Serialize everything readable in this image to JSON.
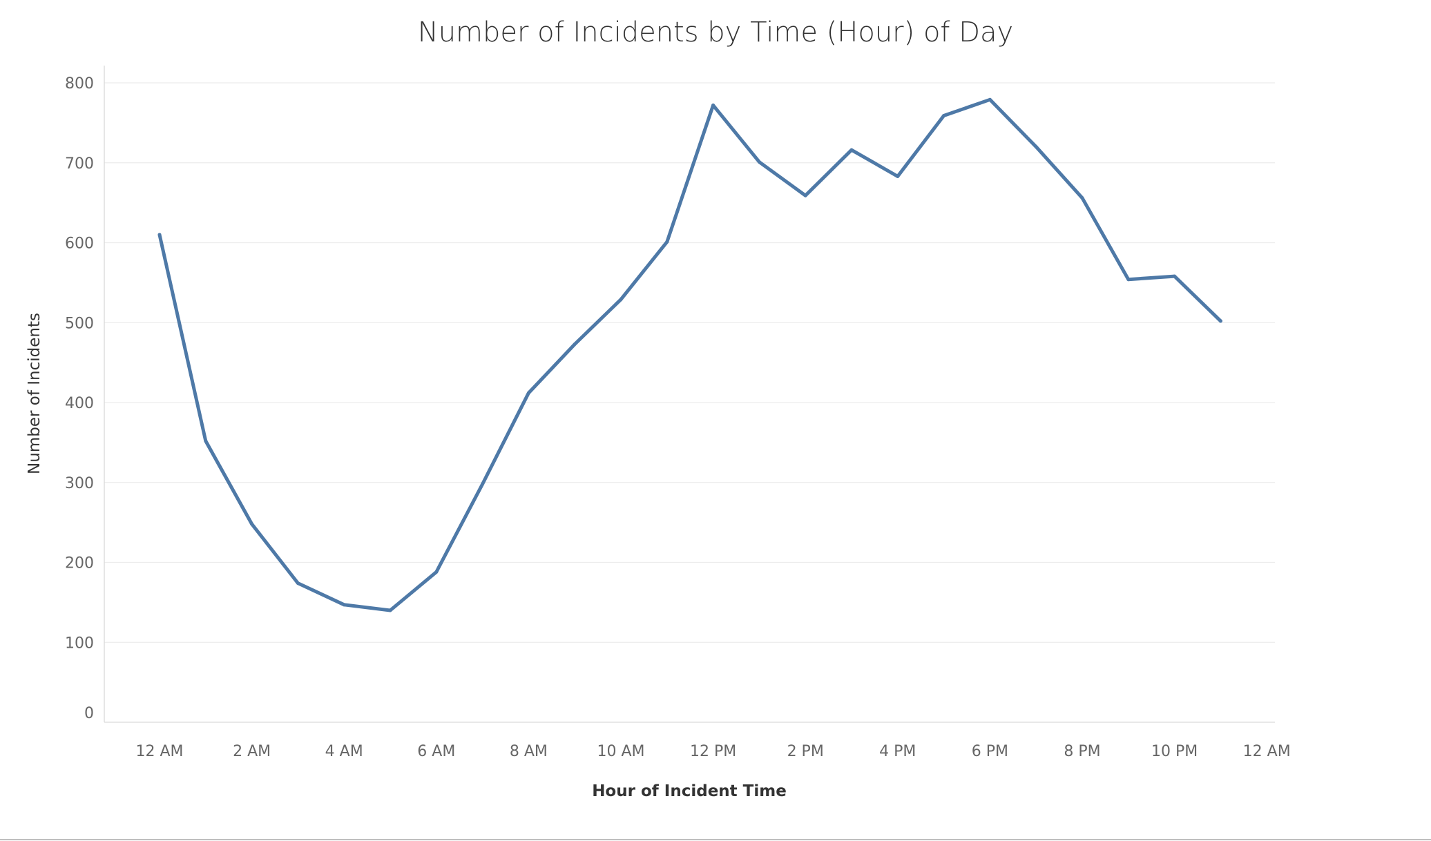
{
  "chart_data": {
    "type": "line",
    "title": "Number of Incidents by Time (Hour) of Day",
    "xlabel": "Hour of Incident Time",
    "ylabel": "Number of Incidents",
    "x": [
      "12 AM",
      "1 AM",
      "2 AM",
      "3 AM",
      "4 AM",
      "5 AM",
      "6 AM",
      "7 AM",
      "8 AM",
      "9 AM",
      "10 AM",
      "11 AM",
      "12 PM",
      "1 PM",
      "2 PM",
      "3 PM",
      "4 PM",
      "5 PM",
      "6 PM",
      "7 PM",
      "8 PM",
      "9 PM",
      "10 PM",
      "11 PM"
    ],
    "x_tick_labels": [
      "12 AM",
      "2 AM",
      "4 AM",
      "6 AM",
      "8 AM",
      "10 AM",
      "12 PM",
      "2 PM",
      "4 PM",
      "6 PM",
      "8 PM",
      "10 PM",
      "12 AM"
    ],
    "series": [
      {
        "values": [
          610,
          352,
          248,
          174,
          147,
          140,
          188,
          298,
          412,
          473,
          529,
          601,
          772,
          701,
          659,
          716,
          683,
          759,
          779,
          720,
          656,
          554,
          558,
          502
        ],
        "color": "#4e79a7"
      }
    ],
    "ylim": [
      0,
      800
    ],
    "y_ticks": [
      0,
      100,
      200,
      300,
      400,
      500,
      600,
      700,
      800
    ],
    "grid": true,
    "legend": "none"
  }
}
